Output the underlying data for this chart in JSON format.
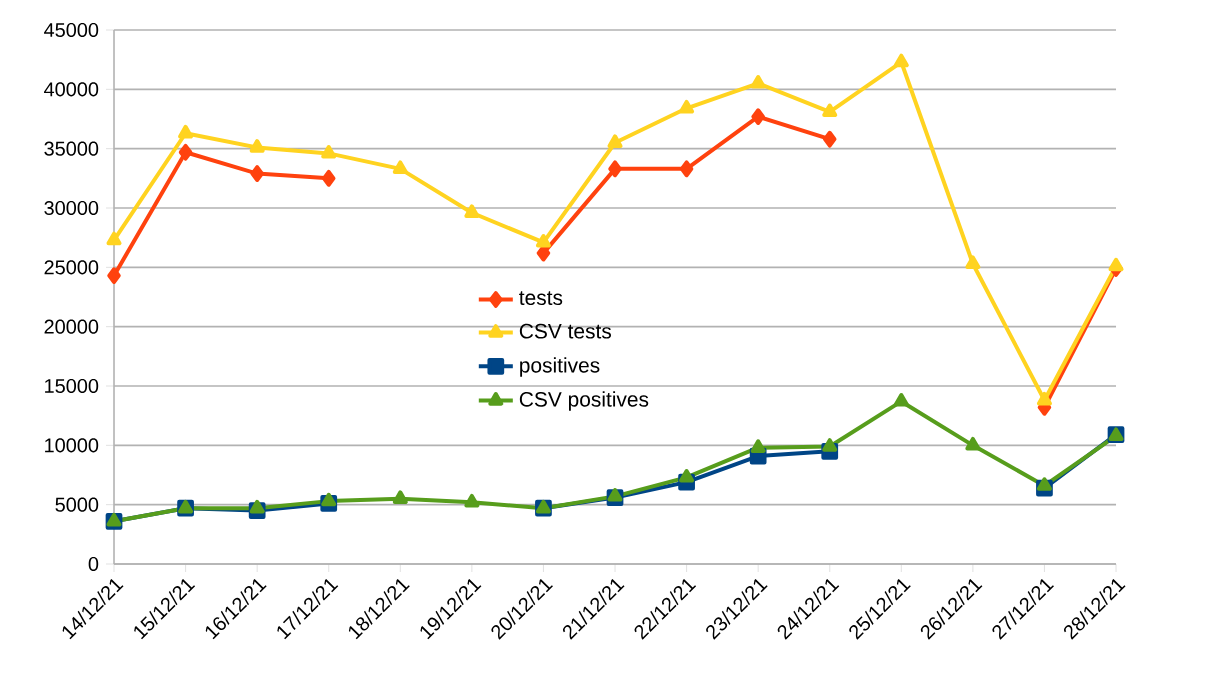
{
  "chart_data": {
    "type": "line",
    "categories": [
      "14/12/21",
      "15/12/21",
      "16/12/21",
      "17/12/21",
      "18/12/21",
      "19/12/21",
      "20/12/21",
      "21/12/21",
      "22/12/21",
      "23/12/21",
      "24/12/21",
      "25/12/21",
      "26/12/21",
      "27/12/21",
      "28/12/21"
    ],
    "series": [
      {
        "name": "tests",
        "color": "#ff420e",
        "marker": "diamond",
        "values": [
          24300,
          34700,
          32900,
          32500,
          null,
          null,
          26200,
          33300,
          33300,
          37700,
          35800,
          null,
          null,
          13200,
          24900
        ]
      },
      {
        "name": "CSV tests",
        "color": "#ffd320",
        "marker": "triangle",
        "values": [
          27300,
          36300,
          35100,
          34600,
          33300,
          29600,
          27100,
          35500,
          38400,
          40500,
          38100,
          42300,
          25300,
          13800,
          25100
        ]
      },
      {
        "name": "positives",
        "color": "#004586",
        "marker": "square",
        "values": [
          3600,
          4700,
          4500,
          5100,
          null,
          null,
          4700,
          5600,
          6900,
          9100,
          9500,
          null,
          null,
          6400,
          10900
        ]
      },
      {
        "name": "CSV positives",
        "color": "#579d1c",
        "marker": "triangle",
        "values": [
          3600,
          4700,
          4700,
          5300,
          5500,
          5200,
          4700,
          5700,
          7300,
          9800,
          9900,
          13700,
          10000,
          6600,
          10800
        ]
      }
    ],
    "ylim": [
      0,
      45000
    ],
    "yticks": [
      0,
      5000,
      10000,
      15000,
      20000,
      25000,
      30000,
      35000,
      40000,
      45000
    ],
    "grid": "y",
    "legend": "center",
    "line_style": "solid"
  }
}
